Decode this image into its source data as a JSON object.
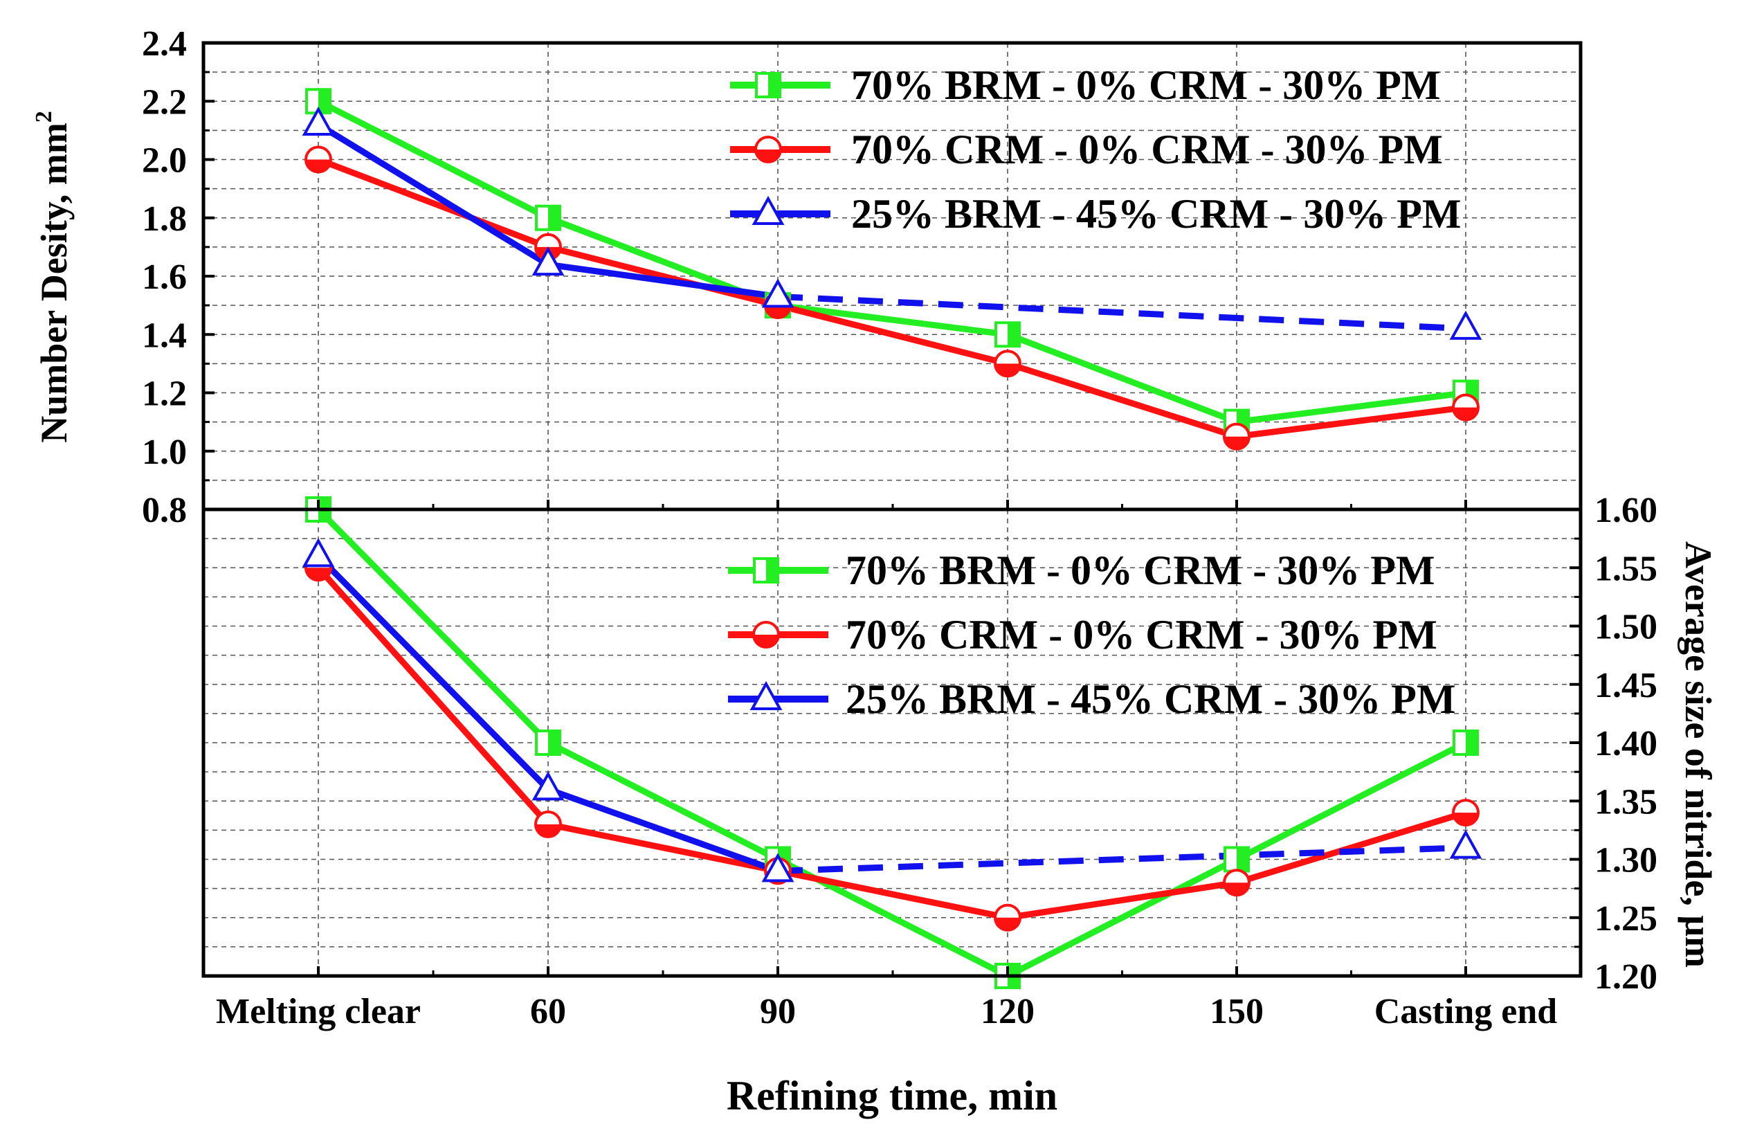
{
  "chart_data": [
    {
      "type": "line",
      "panel": "top",
      "ylabel": "Number Desity, mm",
      "ylabel_sup": "2",
      "ylim": [
        0.8,
        2.4
      ],
      "yticks": [
        "0.8",
        "1.0",
        "1.2",
        "1.4",
        "1.6",
        "1.8",
        "2.0",
        "2.2",
        "2.4"
      ],
      "grid": true,
      "legend_position": "top-right",
      "categories": [
        "Melting clear",
        "60",
        "90",
        "120",
        "150",
        "Casting end"
      ],
      "series": [
        {
          "name": "70% BRM - 0% CRM - 30% PM",
          "color": "#22ee22",
          "marker": "square",
          "values": [
            2.2,
            1.8,
            1.5,
            1.4,
            1.1,
            1.2
          ]
        },
        {
          "name": "70% CRM - 0% CRM - 30% PM",
          "color": "#ff1111",
          "marker": "circle",
          "values": [
            2.0,
            1.7,
            1.5,
            1.3,
            1.05,
            1.15
          ]
        },
        {
          "name": "25% BRM - 45% CRM - 30% PM",
          "color": "#1111ee",
          "marker": "triangle",
          "values": [
            2.12,
            1.64,
            1.53,
            null,
            null,
            1.42
          ],
          "dashed_from_index": 2
        }
      ]
    },
    {
      "type": "line",
      "panel": "bottom",
      "ylabel": "Average size of nitride, μm",
      "ylim": [
        1.2,
        1.6
      ],
      "yticks": [
        "1.20",
        "1.25",
        "1.30",
        "1.35",
        "1.40",
        "1.45",
        "1.50",
        "1.55",
        "1.60"
      ],
      "grid": true,
      "legend_position": "top-right",
      "categories": [
        "Melting clear",
        "60",
        "90",
        "120",
        "150",
        "Casting end"
      ],
      "series": [
        {
          "name": "70% BRM - 0% CRM - 30% PM",
          "color": "#22ee22",
          "marker": "square",
          "values": [
            1.6,
            1.4,
            1.3,
            1.2,
            1.3,
            1.4
          ]
        },
        {
          "name": "70% CRM - 0% CRM - 30% PM",
          "color": "#ff1111",
          "marker": "circle",
          "values": [
            1.55,
            1.33,
            1.29,
            1.25,
            1.28,
            1.34
          ]
        },
        {
          "name": "25% BRM - 45% CRM - 30% PM",
          "color": "#1111ee",
          "marker": "triangle",
          "values": [
            1.56,
            1.36,
            1.29,
            null,
            null,
            1.31
          ],
          "dashed_from_index": 2
        }
      ]
    }
  ],
  "xlabel": "Refining time, min"
}
